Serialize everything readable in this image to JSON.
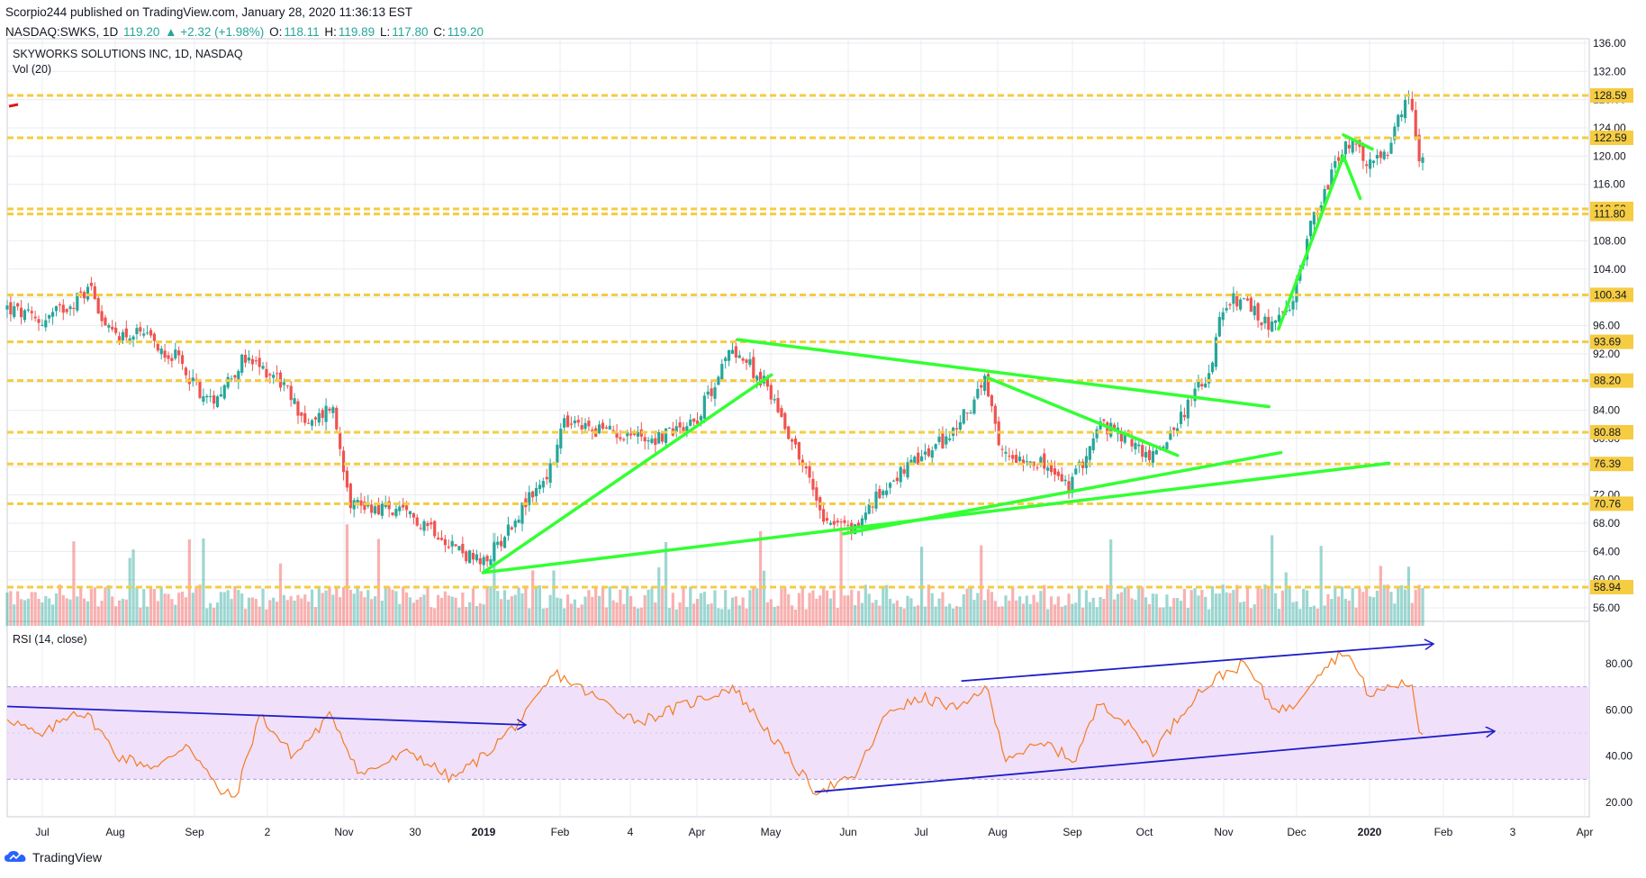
{
  "header": {
    "published": "Scorpio244 published on TradingView.com, January 28, 2020 11:36:13 EST",
    "symbol": "NASDAQ:SWKS, 1D",
    "last": "119.20",
    "change": "▲ +2.32 (+1.98%)",
    "o_label": "O:",
    "o_val": "118.11",
    "h_label": "H:",
    "h_val": "119.89",
    "l_label": "L:",
    "l_val": "117.80",
    "c_label": "C:",
    "c_val": "119.20"
  },
  "footer": {
    "brand": "TradingView"
  },
  "colors": {
    "up": "#26a69a",
    "down": "#ef5350",
    "trendline": "#33ff33",
    "level": "#f5cc42",
    "rsi_line": "#f57c20",
    "rsi_band": "#f0e0fa",
    "rsi_trend": "#1e1ec8",
    "grid": "#e9ecf2"
  },
  "icons": {
    "brand_logo": "tradingview-cloud-logo"
  },
  "chart_data": [
    {
      "type": "candlestick",
      "title": "SKYWORKS SOLUTIONS INC, 1D, NASDAQ",
      "volume_label": "Vol (20)",
      "x_ticks": [
        "Jul",
        "Aug",
        "Sep",
        "2",
        "Nov",
        "30",
        "2019",
        "Feb",
        "4",
        "Apr",
        "May",
        "Jun",
        "Jul",
        "Aug",
        "Sep",
        "Oct",
        "Nov",
        "Dec",
        "2020",
        "Feb",
        "3",
        "Apr"
      ],
      "y_ticks": [
        136,
        132,
        128,
        124,
        120,
        116,
        108,
        104,
        100,
        96,
        92,
        88,
        84,
        80,
        76,
        72,
        68,
        64,
        60,
        56
      ],
      "ylim": [
        54,
        137
      ],
      "horizontal_levels": [
        128.59,
        122.59,
        112.52,
        111.8,
        100.34,
        93.69,
        88.2,
        80.88,
        76.39,
        70.76,
        58.94
      ],
      "price_path": [
        {
          "date": "2018-06-18",
          "close": 98.5
        },
        {
          "date": "2018-07-02",
          "close": 96.5
        },
        {
          "date": "2018-07-16",
          "close": 99.5
        },
        {
          "date": "2018-07-23",
          "close": 101.5
        },
        {
          "date": "2018-07-30",
          "close": 95
        },
        {
          "date": "2018-08-13",
          "close": 94.5
        },
        {
          "date": "2018-08-27",
          "close": 91.5
        },
        {
          "date": "2018-09-10",
          "close": 85
        },
        {
          "date": "2018-09-24",
          "close": 91
        },
        {
          "date": "2018-10-08",
          "close": 89
        },
        {
          "date": "2018-10-22",
          "close": 81.5
        },
        {
          "date": "2018-10-31",
          "close": 85
        },
        {
          "date": "2018-11-08",
          "close": 71
        },
        {
          "date": "2018-11-23",
          "close": 70
        },
        {
          "date": "2018-12-10",
          "close": 68
        },
        {
          "date": "2018-12-24",
          "close": 64
        },
        {
          "date": "2019-01-02",
          "close": 62
        },
        {
          "date": "2019-01-18",
          "close": 70
        },
        {
          "date": "2019-01-31",
          "close": 76
        },
        {
          "date": "2019-02-04",
          "close": 82
        },
        {
          "date": "2019-02-25",
          "close": 81
        },
        {
          "date": "2019-03-15",
          "close": 80
        },
        {
          "date": "2019-04-01",
          "close": 83
        },
        {
          "date": "2019-04-16",
          "close": 93
        },
        {
          "date": "2019-05-01",
          "close": 87
        },
        {
          "date": "2019-05-13",
          "close": 78
        },
        {
          "date": "2019-05-24",
          "close": 69
        },
        {
          "date": "2019-06-05",
          "close": 67
        },
        {
          "date": "2019-06-20",
          "close": 74
        },
        {
          "date": "2019-07-03",
          "close": 77
        },
        {
          "date": "2019-07-17",
          "close": 81
        },
        {
          "date": "2019-07-30",
          "close": 88
        },
        {
          "date": "2019-08-05",
          "close": 78
        },
        {
          "date": "2019-08-20",
          "close": 77
        },
        {
          "date": "2019-09-03",
          "close": 73
        },
        {
          "date": "2019-09-16",
          "close": 82
        },
        {
          "date": "2019-10-01",
          "close": 79
        },
        {
          "date": "2019-10-07",
          "close": 77
        },
        {
          "date": "2019-10-21",
          "close": 84
        },
        {
          "date": "2019-11-01",
          "close": 90
        },
        {
          "date": "2019-11-04",
          "close": 96
        },
        {
          "date": "2019-11-11",
          "close": 100
        },
        {
          "date": "2019-11-25",
          "close": 96
        },
        {
          "date": "2019-12-04",
          "close": 98
        },
        {
          "date": "2019-12-12",
          "close": 110
        },
        {
          "date": "2019-12-27",
          "close": 122
        },
        {
          "date": "2020-01-06",
          "close": 119
        },
        {
          "date": "2020-01-13",
          "close": 120
        },
        {
          "date": "2020-01-20",
          "close": 127
        },
        {
          "date": "2020-01-23",
          "close": 128
        },
        {
          "date": "2020-01-27",
          "close": 117
        },
        {
          "date": "2020-01-28",
          "close": 119.2
        }
      ],
      "trendlines": [
        {
          "from": {
            "date": "2019-01-02",
            "price": 61
          },
          "to": {
            "date": "2019-05-02",
            "price": 89
          }
        },
        {
          "from": {
            "date": "2019-01-02",
            "price": 61
          },
          "to": {
            "date": "2020-01-14",
            "price": 76.5
          }
        },
        {
          "from": {
            "date": "2019-04-18",
            "price": 94
          },
          "to": {
            "date": "2019-11-25",
            "price": 84.5
          }
        },
        {
          "from": {
            "date": "2019-07-31",
            "price": 88.6
          },
          "to": {
            "date": "2019-10-18",
            "price": 77.6
          }
        },
        {
          "from": {
            "date": "2019-06-01",
            "price": 66.5
          },
          "to": {
            "date": "2019-11-30",
            "price": 78
          }
        },
        {
          "from": {
            "date": "2019-11-29",
            "price": 95.5
          },
          "to": {
            "date": "2019-12-26",
            "price": 120
          }
        },
        {
          "from": {
            "date": "2019-12-26",
            "price": 120
          },
          "to": {
            "date": "2020-01-02",
            "price": 114
          }
        },
        {
          "from": {
            "date": "2019-12-26",
            "price": 123
          },
          "to": {
            "date": "2020-01-07",
            "price": 121
          }
        }
      ]
    },
    {
      "type": "line",
      "title": "RSI (14, close)",
      "y_ticks": [
        80,
        60,
        40,
        20
      ],
      "ylim": [
        15,
        90
      ],
      "band": [
        30,
        70
      ],
      "series": [
        {
          "values": [
            {
              "date": "2018-06-18",
              "rsi": 57
            },
            {
              "date": "2018-07-02",
              "rsi": 48
            },
            {
              "date": "2018-07-16",
              "rsi": 60
            },
            {
              "date": "2018-07-23",
              "rsi": 56
            },
            {
              "date": "2018-08-03",
              "rsi": 40
            },
            {
              "date": "2018-08-20",
              "rsi": 35
            },
            {
              "date": "2018-09-01",
              "rsi": 46
            },
            {
              "date": "2018-09-14",
              "rsi": 25
            },
            {
              "date": "2018-09-21",
              "rsi": 22
            },
            {
              "date": "2018-10-01",
              "rsi": 58
            },
            {
              "date": "2018-10-15",
              "rsi": 40
            },
            {
              "date": "2018-10-31",
              "rsi": 58
            },
            {
              "date": "2018-11-12",
              "rsi": 32
            },
            {
              "date": "2018-12-03",
              "rsi": 42
            },
            {
              "date": "2018-12-20",
              "rsi": 30
            },
            {
              "date": "2019-01-02",
              "rsi": 40
            },
            {
              "date": "2019-01-20",
              "rsi": 58
            },
            {
              "date": "2019-02-01",
              "rsi": 76
            },
            {
              "date": "2019-02-20",
              "rsi": 64
            },
            {
              "date": "2019-03-08",
              "rsi": 55
            },
            {
              "date": "2019-04-01",
              "rsi": 64
            },
            {
              "date": "2019-04-16",
              "rsi": 70
            },
            {
              "date": "2019-05-07",
              "rsi": 42
            },
            {
              "date": "2019-05-20",
              "rsi": 25
            },
            {
              "date": "2019-06-05",
              "rsi": 30
            },
            {
              "date": "2019-06-20",
              "rsi": 60
            },
            {
              "date": "2019-07-05",
              "rsi": 65
            },
            {
              "date": "2019-07-20",
              "rsi": 60
            },
            {
              "date": "2019-07-30",
              "rsi": 71
            },
            {
              "date": "2019-08-07",
              "rsi": 40
            },
            {
              "date": "2019-08-25",
              "rsi": 45
            },
            {
              "date": "2019-09-05",
              "rsi": 38
            },
            {
              "date": "2019-09-16",
              "rsi": 64
            },
            {
              "date": "2019-10-01",
              "rsi": 50
            },
            {
              "date": "2019-10-08",
              "rsi": 42
            },
            {
              "date": "2019-10-25",
              "rsi": 66
            },
            {
              "date": "2019-11-05",
              "rsi": 75
            },
            {
              "date": "2019-11-15",
              "rsi": 80
            },
            {
              "date": "2019-11-26",
              "rsi": 62
            },
            {
              "date": "2019-12-04",
              "rsi": 60
            },
            {
              "date": "2019-12-15",
              "rsi": 76
            },
            {
              "date": "2019-12-27",
              "rsi": 86
            },
            {
              "date": "2020-01-06",
              "rsi": 66
            },
            {
              "date": "2020-01-14",
              "rsi": 70
            },
            {
              "date": "2020-01-23",
              "rsi": 72
            },
            {
              "date": "2020-01-27",
              "rsi": 49
            },
            {
              "date": "2020-01-28",
              "rsi": 50
            }
          ]
        }
      ],
      "trendlines": [
        {
          "from": {
            "date": "2018-06-18",
            "rsi": 61.5
          },
          "to": {
            "date": "2019-01-18",
            "rsi": 55.5
          }
        },
        {
          "from": {
            "date": "2019-05-20",
            "rsi": 24.5
          },
          "to": {
            "date": "2020-01-28",
            "rsi": 50.5
          }
        },
        {
          "from": {
            "date": "2019-07-20",
            "rsi": 72.5
          },
          "to": {
            "date": "2020-01-28",
            "rsi": 88.5
          }
        }
      ]
    }
  ]
}
